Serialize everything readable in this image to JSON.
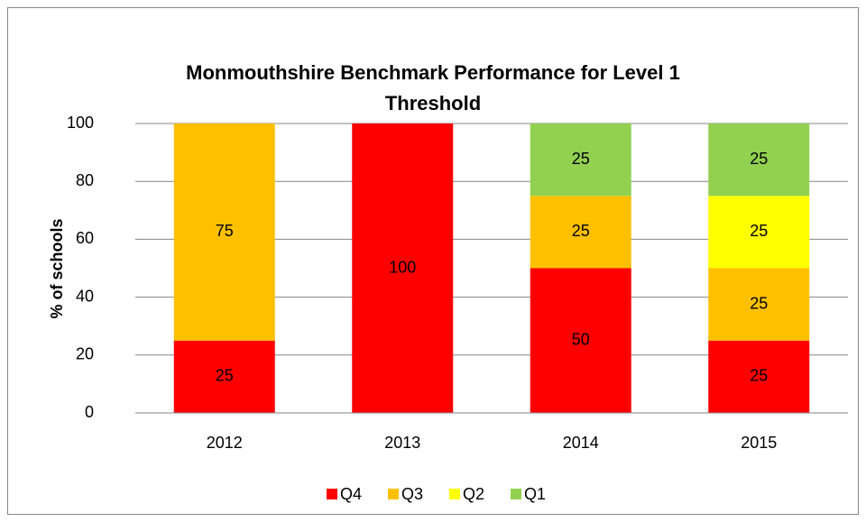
{
  "chart_data": {
    "type": "stacked_bar",
    "title": "Monmouthshire Benchmark Performance for Level 1 Threshold",
    "y_label": "% of schools",
    "categories": [
      "2012",
      "2013",
      "2014",
      "2015"
    ],
    "series": [
      {
        "name": "Q4",
        "color": "#ff0000",
        "values": [
          25,
          100,
          50,
          25
        ]
      },
      {
        "name": "Q3",
        "color": "#ffc000",
        "values": [
          75,
          null,
          25,
          25
        ]
      },
      {
        "name": "Q2",
        "color": "#ffff00",
        "values": [
          null,
          null,
          null,
          25
        ]
      },
      {
        "name": "Q1",
        "color": "#92d050",
        "values": [
          null,
          null,
          25,
          25
        ]
      }
    ],
    "ylim": [
      0,
      100
    ],
    "yticks": [
      0,
      20,
      40,
      60,
      80,
      100
    ],
    "grid": true,
    "legend": "bottom"
  }
}
